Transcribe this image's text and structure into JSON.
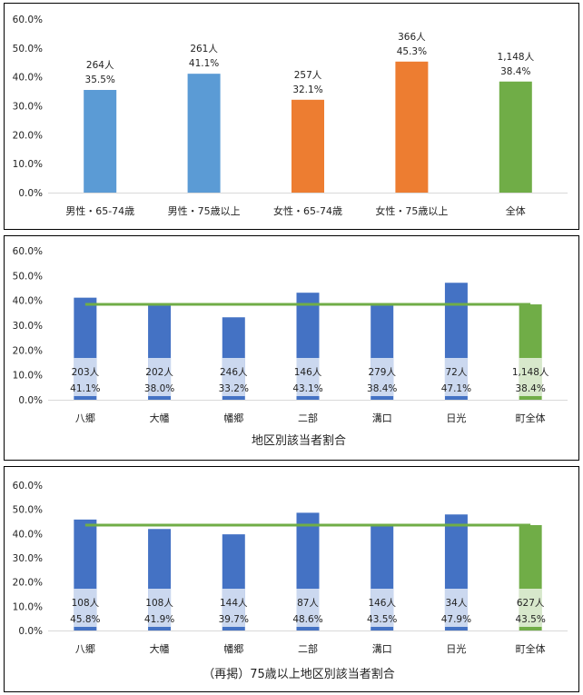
{
  "chart_data": [
    {
      "type": "bar",
      "categories": [
        "男性・65-74歳",
        "男性・75歳以上",
        "女性・65-74歳",
        "女性・75歳以上",
        "全体"
      ],
      "values": [
        35.5,
        41.1,
        32.1,
        45.3,
        38.4
      ],
      "counts": [
        "264人",
        "261人",
        "257人",
        "366人",
        "1,148人"
      ],
      "value_labels": [
        "35.5%",
        "41.1%",
        "32.1%",
        "45.3%",
        "38.4%"
      ],
      "bar_colors": [
        "#5b9bd5",
        "#5b9bd5",
        "#ed7d31",
        "#ed7d31",
        "#70ad47"
      ],
      "yticks": [
        "0.0%",
        "10.0%",
        "20.0%",
        "30.0%",
        "40.0%",
        "50.0%",
        "60.0%"
      ],
      "ylim": [
        0,
        60
      ],
      "title": "",
      "xlabel": "",
      "ylabel": ""
    },
    {
      "type": "bar",
      "title": "地区別該当者割合",
      "categories": [
        "八郷",
        "大幡",
        "幡郷",
        "二部",
        "溝口",
        "日光",
        "町全体"
      ],
      "values": [
        41.1,
        38.0,
        33.2,
        43.1,
        38.4,
        47.1,
        38.4
      ],
      "counts": [
        "203人",
        "202人",
        "246人",
        "146人",
        "279人",
        "72人",
        "1,148人"
      ],
      "value_labels": [
        "41.1%",
        "38.0%",
        "33.2%",
        "43.1%",
        "38.4%",
        "47.1%",
        "38.4%"
      ],
      "bar_colors": [
        "#4472c4",
        "#4472c4",
        "#4472c4",
        "#4472c4",
        "#4472c4",
        "#4472c4",
        "#70ad47"
      ],
      "reference_line": 38.4,
      "reference_color": "#70ad47",
      "yticks": [
        "0.0%",
        "10.0%",
        "20.0%",
        "30.0%",
        "40.0%",
        "50.0%",
        "60.0%"
      ],
      "ylim": [
        0,
        60
      ],
      "xlabel": "",
      "ylabel": ""
    },
    {
      "type": "bar",
      "title": "（再掲）75歳以上地区別該当者割合",
      "categories": [
        "八郷",
        "大幡",
        "幡郷",
        "二部",
        "溝口",
        "日光",
        "町全体"
      ],
      "values": [
        45.8,
        41.9,
        39.7,
        48.6,
        43.5,
        47.9,
        43.5
      ],
      "counts": [
        "108人",
        "108人",
        "144人",
        "87人",
        "146人",
        "34人",
        "627人"
      ],
      "value_labels": [
        "45.8%",
        "41.9%",
        "39.7%",
        "48.6%",
        "43.5%",
        "47.9%",
        "43.5%"
      ],
      "bar_colors": [
        "#4472c4",
        "#4472c4",
        "#4472c4",
        "#4472c4",
        "#4472c4",
        "#4472c4",
        "#70ad47"
      ],
      "reference_line": 43.5,
      "reference_color": "#70ad47",
      "yticks": [
        "0.0%",
        "10.0%",
        "20.0%",
        "30.0%",
        "40.0%",
        "50.0%",
        "60.0%"
      ],
      "ylim": [
        0,
        60
      ],
      "xlabel": "",
      "ylabel": ""
    }
  ]
}
